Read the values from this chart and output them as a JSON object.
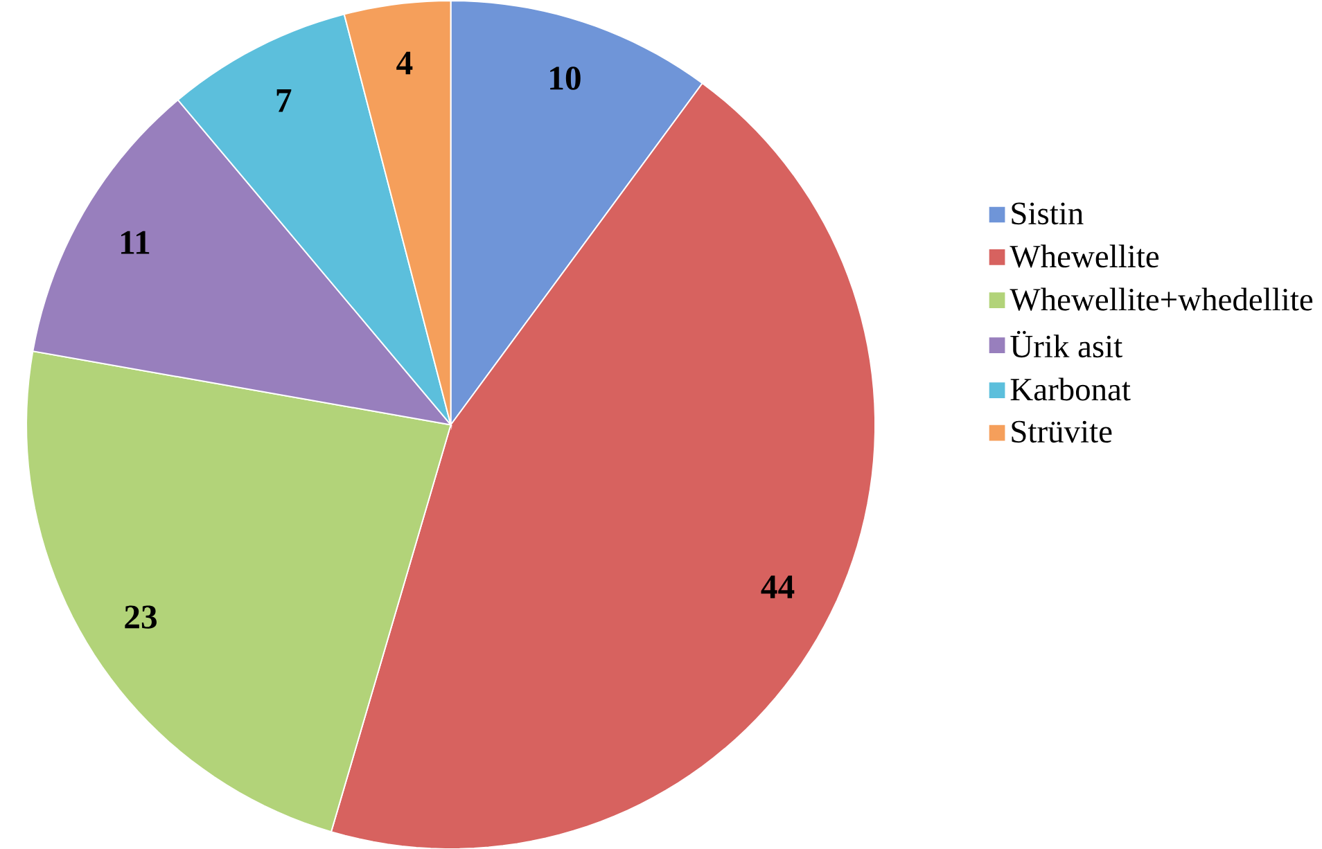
{
  "chart_data": {
    "type": "pie",
    "categories": [
      "Sistin",
      "Whewellite",
      "Whewellite+whedellite",
      "Ürik asit",
      "Karbonat",
      "Strüvite"
    ],
    "values": [
      10,
      44,
      23,
      11,
      7,
      4
    ],
    "colors": [
      "#6f95d8",
      "#d7625f",
      "#b2d379",
      "#987fbd",
      "#5cbfdc",
      "#f59f5b"
    ],
    "data_labels": true,
    "legend": "right"
  }
}
